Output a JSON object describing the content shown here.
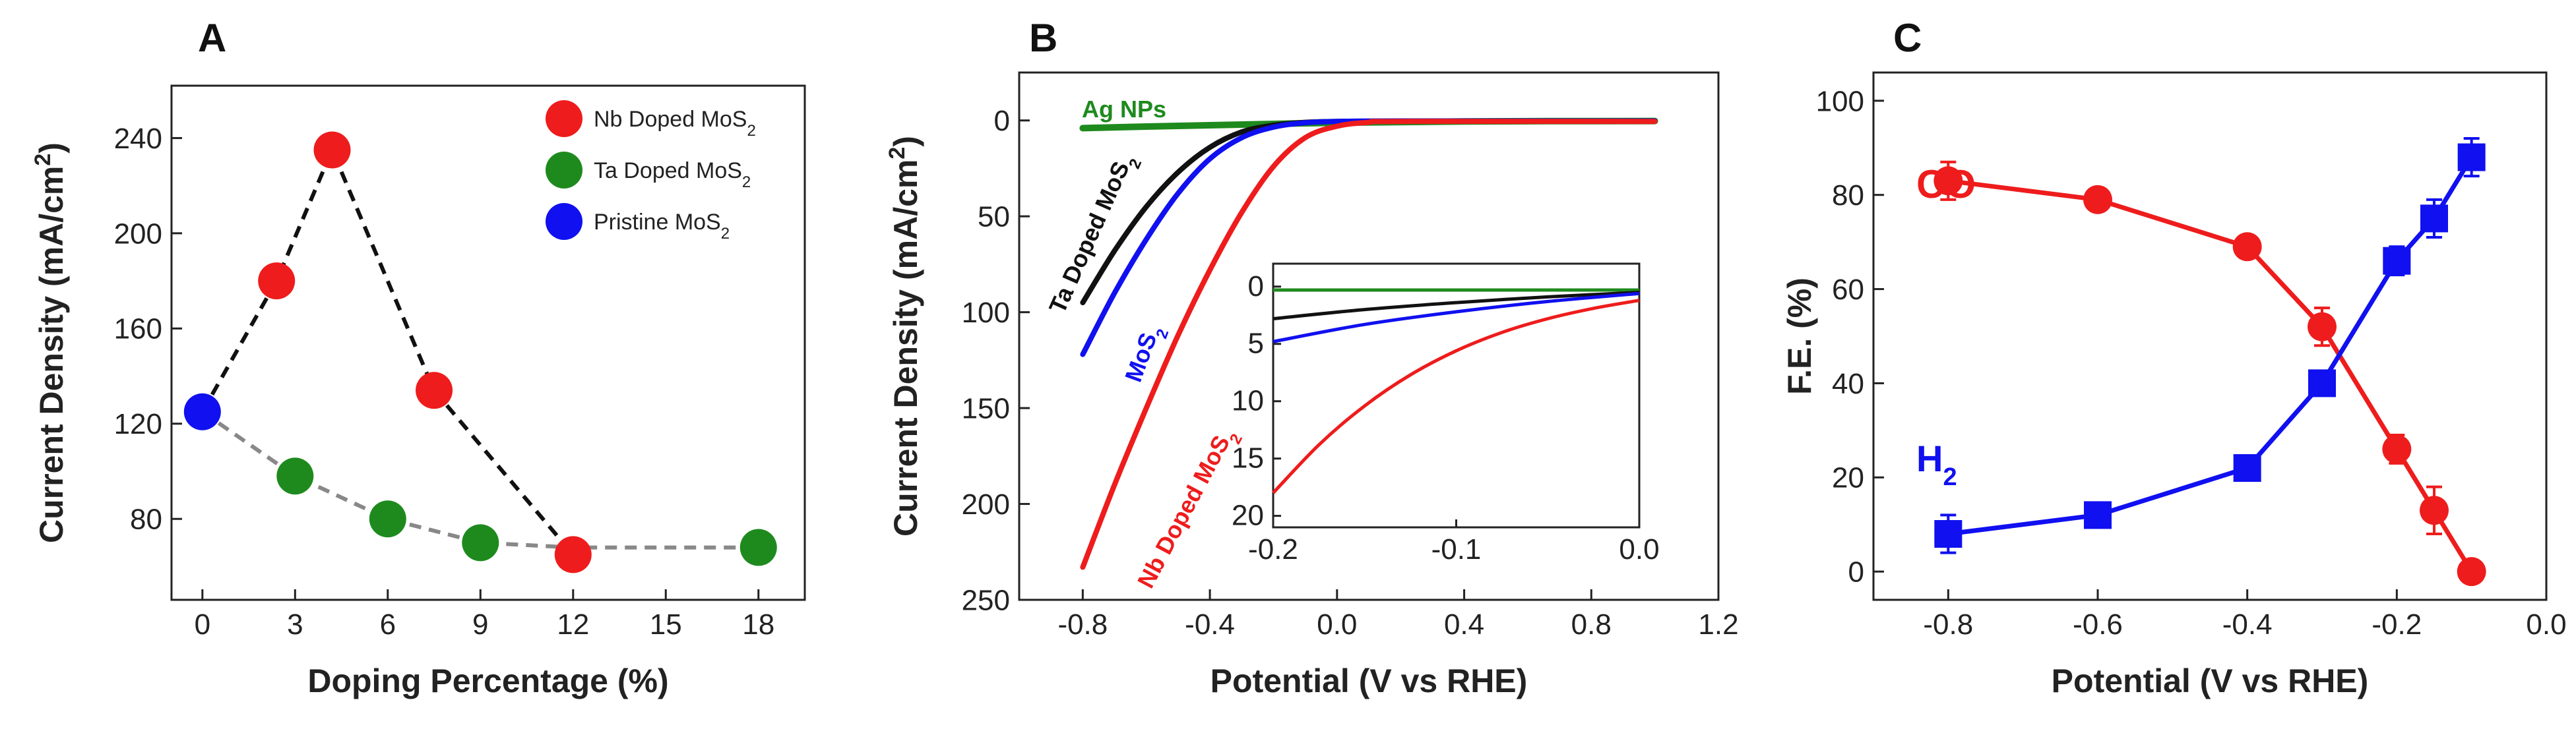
{
  "chart_data": [
    {
      "panel": "A",
      "type": "scatter",
      "xlabel": "Doping Percentage (%)",
      "ylabel": "Current Density (mA/cm²)",
      "xlim": [
        -1,
        19.5
      ],
      "ylim": [
        46,
        262
      ],
      "xticks": [
        "0",
        "3",
        "6",
        "9",
        "12",
        "15",
        "18"
      ],
      "yticks": [
        "80",
        "120",
        "160",
        "200",
        "240"
      ],
      "legend_position": "top-right",
      "series": [
        {
          "name": "Nb Doped MoS2",
          "color": "#ee1c1c",
          "x": [
            2.4,
            4.2,
            7.5,
            12
          ],
          "y": [
            180,
            235,
            134,
            65
          ]
        },
        {
          "name": "Ta Doped MoS2",
          "color": "#1e8a1e",
          "x": [
            3,
            6,
            9,
            18
          ],
          "y": [
            98,
            80,
            70,
            68
          ]
        },
        {
          "name": "Pristine MoS2",
          "color": "#1010f0",
          "x": [
            0
          ],
          "y": [
            125
          ]
        }
      ],
      "dashed_lines": [
        {
          "color": "#111111",
          "x": [
            0,
            2.4,
            4.2,
            7.5,
            12
          ],
          "y": [
            125,
            180,
            235,
            134,
            65
          ]
        },
        {
          "color": "#888888",
          "x": [
            0,
            3,
            6,
            9,
            12,
            18
          ],
          "y": [
            125,
            98,
            80,
            70,
            68,
            68
          ]
        }
      ]
    },
    {
      "panel": "B",
      "type": "line",
      "xlabel": "Potential (V vs RHE)",
      "ylabel": "Current Density (mA/cm²)",
      "xlim": [
        -1.0,
        1.2
      ],
      "ylim": [
        -25,
        250
      ],
      "y_inverted": true,
      "xticks": [
        "-0.8",
        "-0.4",
        "0.0",
        "0.4",
        "0.8",
        "1.2"
      ],
      "yticks": [
        "0",
        "50",
        "100",
        "150",
        "200",
        "250"
      ],
      "series": [
        {
          "name": "Ag NPs",
          "color": "#1e8a1e",
          "x": [
            -0.8,
            -0.6,
            -0.4,
            -0.2,
            0.0,
            0.4,
            1.0
          ],
          "y": [
            4,
            3.2,
            2.5,
            1.8,
            1.2,
            0.5,
            0.3
          ]
        },
        {
          "name": "Ta Doped MoS2",
          "color": "#111111",
          "x": [
            -0.8,
            -0.7,
            -0.6,
            -0.5,
            -0.4,
            -0.3,
            -0.2,
            -0.1,
            0.0,
            0.2,
            1.0
          ],
          "y": [
            95,
            68,
            45,
            27,
            14,
            6,
            2.5,
            1,
            0.5,
            0.3,
            0.3
          ]
        },
        {
          "name": "MoS2",
          "color": "#1010f0",
          "x": [
            -0.8,
            -0.7,
            -0.6,
            -0.5,
            -0.4,
            -0.3,
            -0.2,
            -0.1,
            0.0,
            0.2,
            1.0
          ],
          "y": [
            122,
            90,
            62,
            38,
            20,
            9,
            3.5,
            1.2,
            0.5,
            0.3,
            0.3
          ]
        },
        {
          "name": "Nb Doped MoS2",
          "color": "#ee1c1c",
          "x": [
            -0.8,
            -0.7,
            -0.6,
            -0.5,
            -0.4,
            -0.3,
            -0.2,
            -0.1,
            0.0,
            0.1,
            0.2,
            1.0
          ],
          "y": [
            233,
            190,
            150,
            112,
            78,
            48,
            24,
            9,
            3,
            1,
            0.5,
            0.5
          ]
        }
      ],
      "annotations": [
        {
          "text": "Ag NPs",
          "color": "#1e8a1e"
        },
        {
          "text": "Ta Doped MoS",
          "sub": "2",
          "color": "#111111"
        },
        {
          "text": "MoS",
          "sub": "2",
          "color": "#1010f0"
        },
        {
          "text": "Nb Doped MoS",
          "sub": "2",
          "color": "#ee1c1c"
        }
      ],
      "inset": {
        "xlim": [
          -0.2,
          0.0
        ],
        "ylim": [
          -2,
          21
        ],
        "y_inverted": true,
        "xticks": [
          "-0.2",
          "-0.1",
          "0.0"
        ],
        "yticks": [
          "0",
          "5",
          "10",
          "15",
          "20"
        ],
        "series": [
          {
            "name": "Ag NPs",
            "color": "#1e8a1e",
            "x": [
              -0.2,
              -0.1,
              0.0
            ],
            "y": [
              0.3,
              0.3,
              0.3
            ]
          },
          {
            "name": "Ta Doped MoS2",
            "color": "#111111",
            "x": [
              -0.2,
              -0.15,
              -0.1,
              -0.05,
              0.0
            ],
            "y": [
              2.8,
              2.0,
              1.4,
              0.9,
              0.5
            ]
          },
          {
            "name": "MoS2",
            "color": "#1010f0",
            "x": [
              -0.2,
              -0.15,
              -0.1,
              -0.05,
              0.0
            ],
            "y": [
              4.8,
              3.3,
              2.2,
              1.3,
              0.6
            ]
          },
          {
            "name": "Nb Doped MoS2",
            "color": "#ee1c1c",
            "x": [
              -0.2,
              -0.175,
              -0.15,
              -0.125,
              -0.1,
              -0.075,
              -0.05,
              -0.025,
              0.0
            ],
            "y": [
              18,
              13.8,
              10.4,
              7.7,
              5.6,
              4.0,
              2.8,
              1.9,
              1.2
            ]
          }
        ]
      }
    },
    {
      "panel": "C",
      "type": "line",
      "xlabel": "Potential (V vs RHE)",
      "ylabel": "F.E. (%)",
      "xlim": [
        -0.9,
        0.0
      ],
      "ylim": [
        -6,
        106
      ],
      "xticks": [
        "-0.8",
        "-0.6",
        "-0.4",
        "-0.2",
        "0.0"
      ],
      "yticks": [
        "0",
        "20",
        "40",
        "60",
        "80",
        "100"
      ],
      "series": [
        {
          "name": "CO",
          "color": "#ee1c1c",
          "marker": "circle",
          "x": [
            -0.8,
            -0.6,
            -0.4,
            -0.3,
            -0.2,
            -0.15,
            -0.1
          ],
          "y": [
            83,
            79,
            69,
            52,
            26,
            13,
            0
          ],
          "err": [
            4,
            2,
            2,
            4,
            3,
            5,
            1
          ]
        },
        {
          "name": "H2",
          "color": "#1010f0",
          "marker": "square",
          "x": [
            -0.8,
            -0.6,
            -0.4,
            -0.3,
            -0.2,
            -0.15,
            -0.1
          ],
          "y": [
            8,
            12,
            22,
            40,
            66,
            75,
            88
          ],
          "err": [
            4,
            2,
            2,
            2,
            3,
            4,
            4
          ]
        }
      ],
      "annotations": [
        {
          "text": "CO",
          "color": "#ee1c1c"
        },
        {
          "text": "H",
          "sub": "2",
          "color": "#1010f0"
        }
      ]
    }
  ]
}
